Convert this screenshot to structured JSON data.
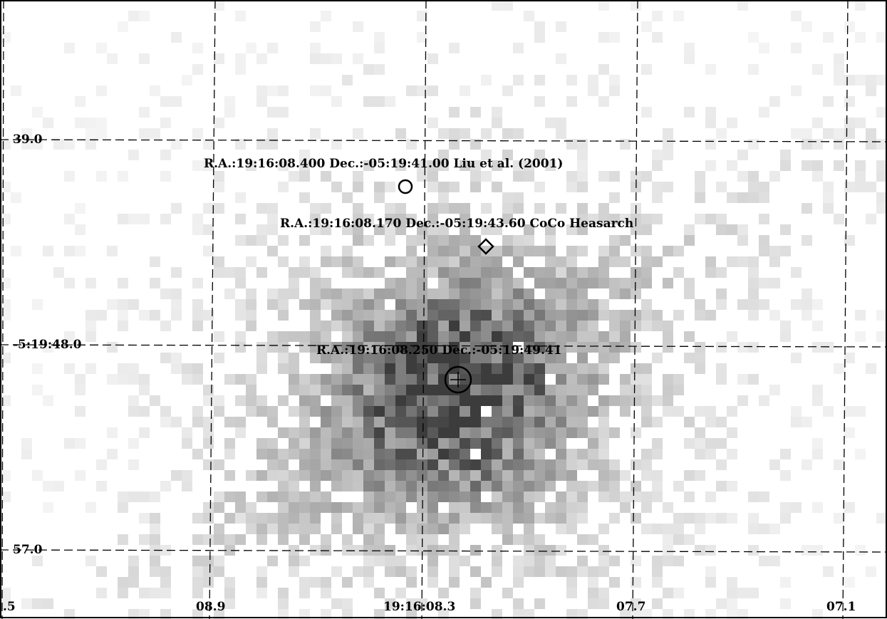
{
  "image": {
    "description_colors": {
      "background": "#ffffff",
      "pixel_dark": "#6a6a6a",
      "grid": "#000000",
      "marker": "#000000"
    }
  },
  "dec_ticks": [
    {
      "label": "39.0"
    },
    {
      "label": "-5:19:48.0"
    },
    {
      "label": "57.0"
    }
  ],
  "ra_ticks": [
    {
      "label": ".5"
    },
    {
      "label": "08.9"
    },
    {
      "label": "19:16:08.3"
    },
    {
      "label": "07.7"
    },
    {
      "label": "07.1"
    }
  ],
  "sources": [
    {
      "marker": "circle-icon",
      "label": "R.A.:19:16:08.400 Dec.:-05:19:41.00 Liu et al. (2001)"
    },
    {
      "marker": "diamond-icon",
      "label": "R.A.:19:16:08.170 Dec.:-05:19:43.60 CoCo Heasarch"
    },
    {
      "marker": "circle-cross-icon",
      "label": "R.A.:19:16:08.250 Dec.:-05:19:49.41"
    }
  ]
}
